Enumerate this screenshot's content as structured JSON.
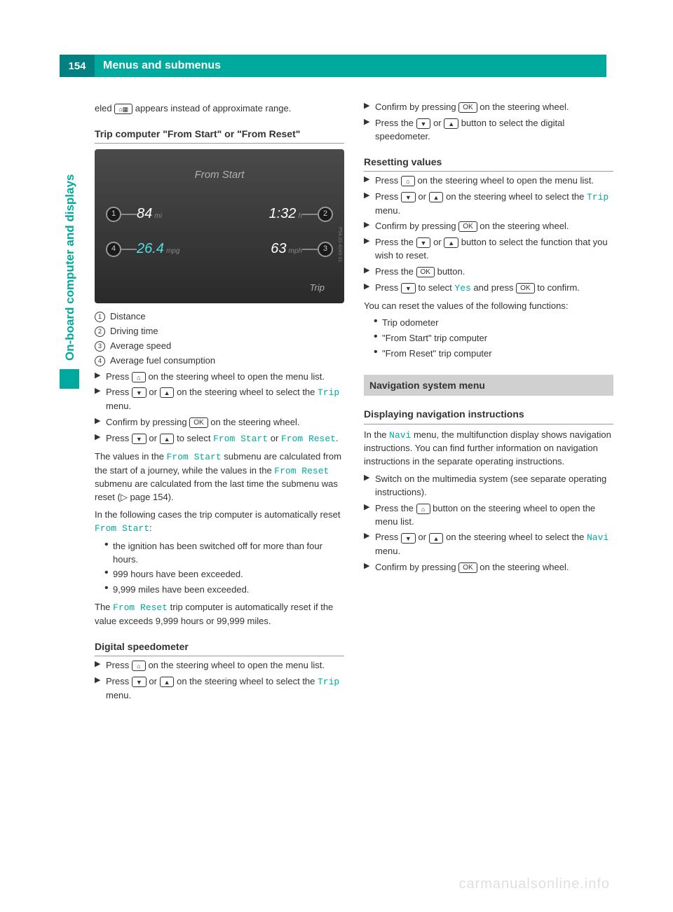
{
  "page_number": "154",
  "header_title": "Menus and submenus",
  "side_tab": "On-board computer and displays",
  "buttons": {
    "car": "⌂▦",
    "down": "▼",
    "up": "▲",
    "ok": "OK",
    "home": "⌂"
  },
  "left": {
    "intro": "eled ",
    "intro_after": " appears instead of approximate range.",
    "h1": "Trip computer \"From Start\" or \"From Reset\"",
    "screenshot": {
      "title": "From Start",
      "distance_val": "84",
      "distance_unit": "mi",
      "time_val": "1:32",
      "time_unit": "h",
      "mpg_val": "26.4",
      "mpg_unit": "mpg",
      "speed_val": "63",
      "speed_unit": "mph",
      "trip_label": "Trip",
      "side_code": "P54.33-4249-31"
    },
    "legend": [
      "Distance",
      "Driving time",
      "Average speed",
      "Average fuel consumption"
    ],
    "steps_a": [
      {
        "pre": "Press ",
        "btn": "home",
        "post": " on the steering wheel to open the menu list."
      },
      {
        "pre": "Press ",
        "btn": "down",
        "mid": " or ",
        "btn2": "up",
        "post": " on the steering wheel to select the ",
        "mono": "Trip",
        "post2": " menu."
      },
      {
        "pre": "Confirm by pressing ",
        "btn": "ok",
        "post": " on the steering wheel."
      },
      {
        "pre": "Press ",
        "btn": "down",
        "mid": " or ",
        "btn2": "up",
        "post": " to select ",
        "mono": "From Start",
        "post2": " or ",
        "mono2": "From Reset",
        "post3": "."
      }
    ],
    "p1_a": "The values in the ",
    "p1_mono1": "From Start",
    "p1_b": " submenu are calculated from the start of a journey, while the values in the ",
    "p1_mono2": "From Reset",
    "p1_c": " submenu are calculated from the last time the submenu was reset (▷ page 154).",
    "p2_a": "In the following cases the trip computer is automatically reset ",
    "p2_mono": "From Start",
    "p2_b": ":",
    "bullets_a": [
      "the ignition has been switched off for more than four hours.",
      "999 hours have been exceeded.",
      "9,999 miles have been exceeded."
    ],
    "p3_a": "The ",
    "p3_mono": "From Reset",
    "p3_b": " trip computer is automatically reset if the value exceeds 9,999 hours or 99,999 miles.",
    "h2": "Digital speedometer",
    "steps_b": [
      {
        "pre": "Press ",
        "btn": "home",
        "post": " on the steering wheel to open the menu list."
      },
      {
        "pre": "Press ",
        "btn": "down",
        "mid": " or ",
        "btn2": "up",
        "post": " on the steering wheel to select the ",
        "mono": "Trip",
        "post2": " menu."
      }
    ]
  },
  "right": {
    "steps_c": [
      {
        "pre": "Confirm by pressing ",
        "btn": "ok",
        "post": " on the steering wheel."
      },
      {
        "pre": "Press the ",
        "btn": "down",
        "mid": " or ",
        "btn2": "up",
        "post": " button to select the digital speedometer."
      }
    ],
    "h3": "Resetting values",
    "steps_d": [
      {
        "pre": "Press ",
        "btn": "home",
        "post": " on the steering wheel to open the menu list."
      },
      {
        "pre": "Press ",
        "btn": "down",
        "mid": " or ",
        "btn2": "up",
        "post": " on the steering wheel to select the ",
        "mono": "Trip",
        "post2": " menu."
      },
      {
        "pre": "Confirm by pressing ",
        "btn": "ok",
        "post": " on the steering wheel."
      },
      {
        "pre": "Press the ",
        "btn": "down",
        "mid": " or ",
        "btn2": "up",
        "post": " button to select the function that you wish to reset."
      },
      {
        "pre": "Press the ",
        "btn": "ok",
        "post": " button."
      },
      {
        "pre": "Press ",
        "btn": "down",
        "post": " to select ",
        "mono": "Yes",
        "post2": " and press ",
        "btn2_after": "ok",
        "post3": " to confirm."
      }
    ],
    "p4": "You can reset the values of the following functions:",
    "bullets_b": [
      "Trip odometer",
      "\"From Start\" trip computer",
      "\"From Reset\" trip computer"
    ],
    "section_bar": "Navigation system menu",
    "h4": "Displaying navigation instructions",
    "p5_a": "In the ",
    "p5_mono": "Navi",
    "p5_b": " menu, the multifunction display shows navigation instructions. You can find further information on navigation instructions in the separate operating instructions.",
    "steps_e": [
      {
        "pre": "Switch on the multimedia system (see separate operating instructions).",
        "btn": null
      },
      {
        "pre": "Press the ",
        "btn": "home",
        "post": " button on the steering wheel to open the menu list."
      },
      {
        "pre": "Press ",
        "btn": "down",
        "mid": " or ",
        "btn2": "up",
        "post": " on the steering wheel to select the ",
        "mono": "Navi",
        "post2": " menu."
      },
      {
        "pre": "Confirm by pressing ",
        "btn": "ok",
        "post": " on the steering wheel."
      }
    ]
  },
  "watermark": "carmanualsonline.info"
}
